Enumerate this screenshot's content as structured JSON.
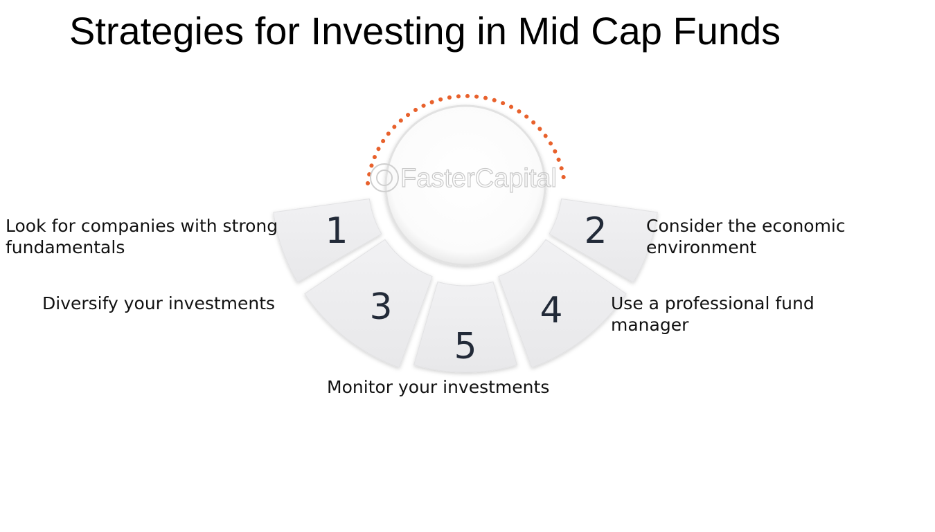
{
  "title": "Strategies for Investing in Mid Cap Funds",
  "watermark": "FasterCapital",
  "colors": {
    "accent_dots": "#e8612c",
    "segment_fill": "#efefef",
    "number_text": "#222a38"
  },
  "strategies": [
    {
      "number": "1",
      "text_lines": [
        "Look for companies with strong",
        "fundamentals"
      ]
    },
    {
      "number": "2",
      "text_lines": [
        "Consider the economic",
        "environment"
      ]
    },
    {
      "number": "3",
      "text_lines": [
        "Diversify your investments"
      ]
    },
    {
      "number": "4",
      "text_lines": [
        "Use a professional fund",
        "manager"
      ]
    },
    {
      "number": "5",
      "text_lines": [
        "Monitor your investments"
      ]
    }
  ]
}
